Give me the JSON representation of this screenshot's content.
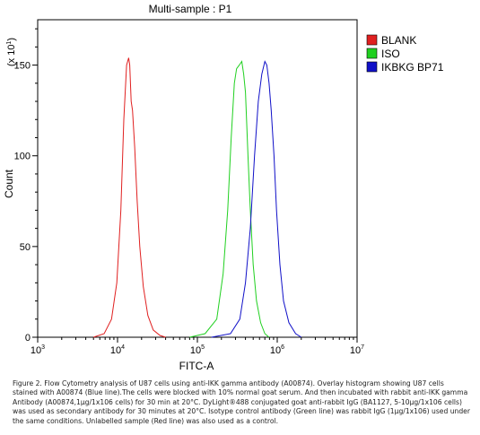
{
  "chart_data": {
    "type": "line",
    "title": "Multi-sample : P1",
    "xlabel": "FITC-A",
    "ylabel": "Count",
    "y_multiplier_label": "(x 10",
    "y_multiplier_exp": "1",
    "y_multiplier_close": ")",
    "x_scale": "log",
    "xlim": [
      1000,
      10000000
    ],
    "ylim": [
      0,
      175
    ],
    "x_ticks": [
      {
        "base": "10",
        "exp": "3"
      },
      {
        "base": "10",
        "exp": "4"
      },
      {
        "base": "10",
        "exp": "5"
      },
      {
        "base": "10",
        "exp": "6"
      },
      {
        "base": "10",
        "exp": "7"
      }
    ],
    "y_ticks": [
      "0",
      "50",
      "100",
      "150"
    ],
    "legend_position": "top-right",
    "series": [
      {
        "name": "BLANK",
        "color": "#e02020",
        "x": [
          5000,
          6800,
          8400,
          9800,
          11000,
          12000,
          13000,
          13800,
          14200,
          14800,
          15400,
          16400,
          17600,
          19000,
          21000,
          24000,
          28000,
          34000,
          40000
        ],
        "y": [
          0,
          2,
          10,
          30,
          70,
          120,
          150,
          154,
          150,
          130,
          125,
          105,
          75,
          50,
          28,
          12,
          4,
          1,
          0
        ]
      },
      {
        "name": "ISO",
        "color": "#20d020",
        "x": [
          80000,
          125000,
          175000,
          210000,
          240000,
          265000,
          290000,
          310000,
          335000,
          360000,
          380000,
          400000,
          430000,
          460000,
          500000,
          550000,
          620000,
          700000,
          790000
        ],
        "y": [
          0,
          2,
          10,
          35,
          70,
          110,
          140,
          148,
          150,
          152,
          145,
          135,
          100,
          70,
          40,
          20,
          8,
          2,
          0
        ]
      },
      {
        "name": "IKBKG BP71",
        "color": "#1010c8",
        "x": [
          150000,
          260000,
          340000,
          400000,
          460000,
          520000,
          580000,
          640000,
          700000,
          740000,
          790000,
          840000,
          910000,
          980000,
          1080000,
          1200000,
          1400000,
          1700000,
          2000000
        ],
        "y": [
          0,
          2,
          10,
          30,
          60,
          100,
          130,
          145,
          152,
          150,
          140,
          125,
          100,
          70,
          40,
          20,
          8,
          2,
          0
        ]
      }
    ]
  },
  "caption": "Figure 2. Flow Cytometry analysis of U87 cells using anti-IKK gamma antibody (A00874).  Overlay histogram showing U87 cells stained with A00874 (Blue line).The cells were blocked with 10% normal goat serum. And then incubated with rabbit anti-IKK gamma Antibody (A00874,1μg/1x106 cells) for 30 min at 20°C. DyLight®488 conjugated goat anti-rabbit IgG (BA1127, 5-10μg/1x106 cells) was used as secondary antibody for 30 minutes at 20°C. Isotype control antibody (Green line) was rabbit IgG (1μg/1x106) used under the same conditions. Unlabelled sample (Red line) was also used as a control."
}
